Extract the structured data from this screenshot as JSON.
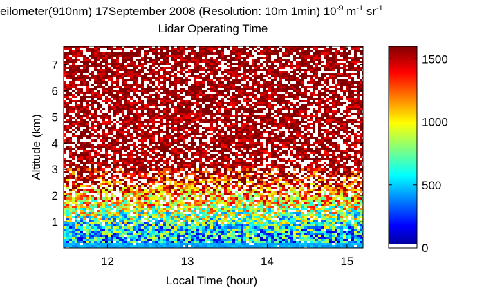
{
  "chart_data": {
    "type": "heatmap",
    "title": {
      "line1_main": "eilometer(910nm) 17September 2008 (Resolution: 10m 1min) 10",
      "line1_exp1": "-9",
      "line1_m": " m",
      "line1_exp2": "-1",
      "line1_sr": " sr",
      "line1_exp3": "-1",
      "line2": "Lidar Operating Time"
    },
    "xlabel": "Local Time (hour)",
    "ylabel": "Altitude (km)",
    "xlim": [
      11.45,
      15.2
    ],
    "ylim": [
      0,
      7.7
    ],
    "x_ticks": [
      12,
      13,
      14,
      15
    ],
    "y_ticks": [
      1,
      2,
      3,
      4,
      5,
      6,
      7
    ],
    "colorbar": {
      "clim": [
        0,
        1600
      ],
      "ticks": [
        0,
        500,
        1000,
        1500
      ],
      "colormap": "jet",
      "colors": [
        "#00008f",
        "#0000ff",
        "#00ffff",
        "#ffff00",
        "#ff0000",
        "#800000"
      ]
    },
    "profile": [
      {
        "altitude_km": 0.1,
        "backscatter": 480
      },
      {
        "altitude_km": 0.5,
        "backscatter": 540
      },
      {
        "altitude_km": 1.0,
        "backscatter": 700
      },
      {
        "altitude_km": 1.5,
        "backscatter": 900
      },
      {
        "altitude_km": 2.0,
        "backscatter": 1150
      },
      {
        "altitude_km": 2.5,
        "backscatter": 1400
      },
      {
        "altitude_km": 3.0,
        "backscatter": 1550
      },
      {
        "altitude_km": 7.7,
        "backscatter": 1600
      }
    ],
    "dropout_fraction_aloft": 0.25
  }
}
